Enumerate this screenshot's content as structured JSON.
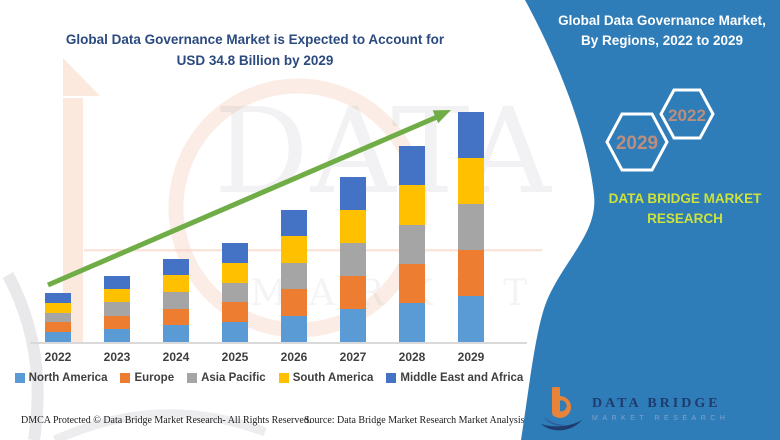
{
  "chart": {
    "title_line1": "Global Data Governance Market is Expected to Account for",
    "title_line2": "USD 34.8 Billion  by 2029",
    "title_color": "#2B4A80"
  },
  "chart_data": {
    "type": "bar",
    "stacked": true,
    "title": "Global Data Governance Market is Expected to Account for USD 34.8 Billion by 2029",
    "unit": "USD Billion",
    "categories": [
      "2022",
      "2023",
      "2024",
      "2025",
      "2026",
      "2027",
      "2028",
      "2029"
    ],
    "totals_estimated": [
      7.4,
      10.0,
      12.6,
      15.0,
      20.0,
      25.0,
      29.6,
      34.8
    ],
    "series": [
      {
        "name": "North America",
        "color": "#5B9BD5",
        "values": [
          1.48,
          2.0,
          2.52,
          3.0,
          4.0,
          5.0,
          5.92,
          6.96
        ]
      },
      {
        "name": "Europe",
        "color": "#ED7D31",
        "values": [
          1.48,
          2.0,
          2.52,
          3.0,
          4.0,
          5.0,
          5.92,
          6.96
        ]
      },
      {
        "name": "Asia Pacific",
        "color": "#A5A5A5",
        "values": [
          1.48,
          2.0,
          2.52,
          3.0,
          4.0,
          5.0,
          5.92,
          6.96
        ]
      },
      {
        "name": "South America",
        "color": "#FFC000",
        "values": [
          1.48,
          2.0,
          2.52,
          3.0,
          4.0,
          5.0,
          5.92,
          6.96
        ]
      },
      {
        "name": "Middle East and Africa",
        "color": "#4472C4",
        "values": [
          1.48,
          2.0,
          2.52,
          3.0,
          4.0,
          5.0,
          5.92,
          6.96
        ]
      }
    ],
    "legend_position": "bottom",
    "x_axis_line_color": "#D9D9D9",
    "annotations": {
      "trend_arrow": {
        "direction": "up",
        "color": "#70AD47"
      }
    }
  },
  "panel": {
    "bg_color": "#2E7CB8",
    "title_line1": "Global Data Governance Market,",
    "title_line2": "By Regions, 2022 to 2029",
    "hexagons": [
      {
        "year": "2029"
      },
      {
        "year": "2022"
      }
    ],
    "hex_text_color": "#BB8E7E",
    "brand_line1": "DATA BRIDGE MARKET",
    "brand_line2": "RESEARCH",
    "brand_color": "#CDE23C",
    "logo": {
      "name": "DATA BRIDGE",
      "tagline": "MARKET RESEARCH"
    }
  },
  "watermark": {
    "text1": "DATA BRIDGE",
    "text2": "MARKET RESEARCH"
  },
  "footer": {
    "dmca": "DMCA Protected © Data Bridge Market Research- All Rights Reserved.",
    "source": "Source: Data Bridge Market Research Market Analysis Study 2022"
  }
}
